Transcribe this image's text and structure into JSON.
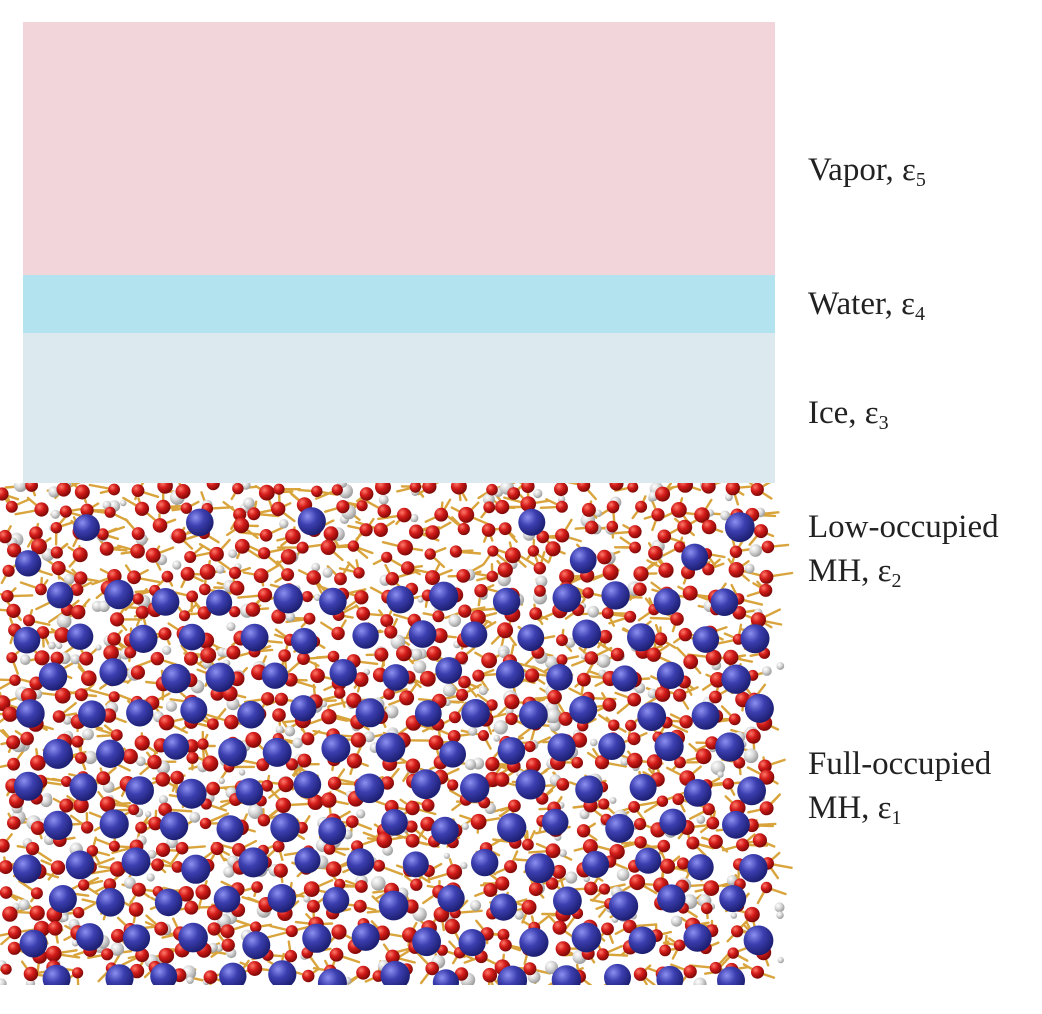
{
  "colors": {
    "vapor": "#f2d5db",
    "water": "#b2e3ee",
    "ice": "#dceaef",
    "methane": "#3c3fb0",
    "oxygen": "#d41c1a",
    "hydrogen": "#dcdcdc",
    "bond": "#d9a43c"
  },
  "labels": {
    "vapor": {
      "name": "Vapor, ε",
      "sub": "5"
    },
    "water": {
      "name": "Water, ε",
      "sub": "4"
    },
    "ice": {
      "name": "Ice, ε",
      "sub": "3"
    },
    "low": {
      "line1": "Low-occupied",
      "line2": "MH, ε",
      "sub": "2"
    },
    "full": {
      "line1": "Full-occupied",
      "line2": "MH, ε",
      "sub": "1"
    }
  }
}
